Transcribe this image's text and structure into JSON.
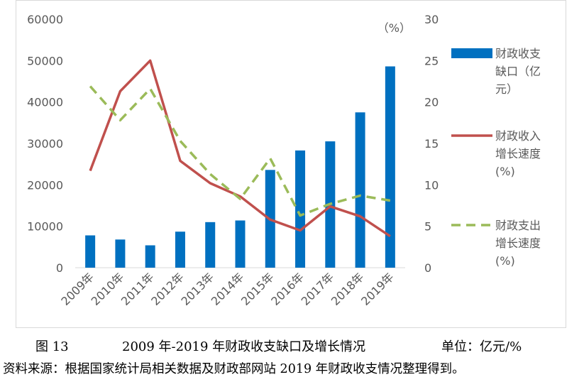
{
  "chart_data": {
    "type": "bar",
    "categories": [
      "2009年",
      "2010年",
      "2011年",
      "2012年",
      "2013年",
      "2014年",
      "2015年",
      "2016年",
      "2017年",
      "2018年",
      "2019年"
    ],
    "y_left": {
      "ticks": [
        0,
        10000,
        20000,
        30000,
        40000,
        50000,
        60000
      ],
      "range": [
        0,
        60000
      ]
    },
    "y_right": {
      "ticks": [
        0,
        5,
        10,
        15,
        20,
        25,
        30
      ],
      "range": [
        0,
        30
      ],
      "unit_label": "（%）"
    },
    "series": [
      {
        "name": "财政收支缺口（亿元）",
        "type": "bar",
        "axis": "left",
        "color": "#0070c0",
        "values": [
          7800,
          6800,
          5400,
          8700,
          11000,
          11400,
          23600,
          28300,
          30500,
          37500,
          48600
        ]
      },
      {
        "name": "财政收入增长速度(%)",
        "type": "line",
        "axis": "right",
        "color": "#c0504d",
        "values": [
          11.7,
          21.3,
          25.0,
          12.9,
          10.2,
          8.6,
          5.8,
          4.5,
          7.4,
          6.2,
          3.8
        ]
      },
      {
        "name": "财政支出增长速度(%)",
        "type": "line",
        "dashed": true,
        "axis": "right",
        "color": "#9bbb59",
        "values": [
          21.9,
          17.8,
          21.6,
          15.3,
          11.3,
          8.3,
          13.2,
          6.3,
          7.7,
          8.7,
          8.1
        ]
      }
    ],
    "legend": [
      {
        "lines": [
          "财政收支",
          "缺口（亿",
          "元）"
        ]
      },
      {
        "lines": [
          "财政收入",
          "增长速度",
          "(%)"
        ]
      },
      {
        "lines": [
          "财政支出",
          "增长速度",
          "(%)"
        ]
      }
    ],
    "legend_position": "right",
    "grid": false
  },
  "caption": {
    "figure_number": "图 13",
    "title": "2009 年-2019 年财政收支缺口及增长情况",
    "unit": "单位：亿元/%",
    "source": "资料来源：根据国家统计局相关数据及财政部网站 2019 年财政收支情况整理得到。"
  }
}
